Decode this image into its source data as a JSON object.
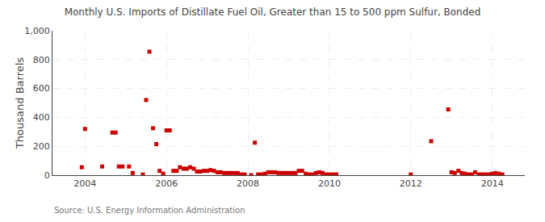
{
  "chart_data": {
    "type": "scatter",
    "title": "Monthly U.S. Imports of Distillate Fuel Oil, Greater than 15 to 500 ppm Sulfur, Bonded",
    "ylabel": "Thousand Barrels",
    "source": "Source: U.S. Energy Information Administration",
    "color": "#cc0000",
    "marker": "square",
    "grid": true,
    "xlim": [
      2003.2,
      2014.8
    ],
    "xticks": [
      2004,
      2006,
      2008,
      2010,
      2012,
      2014
    ],
    "ylim": [
      0,
      1000
    ],
    "yticks": [
      0,
      200,
      400,
      600,
      800,
      {
        "value": 1000,
        "label": "1,000"
      }
    ],
    "x": [
      2003.92,
      2004.0,
      2004.42,
      2004.67,
      2004.75,
      2004.83,
      2004.92,
      2005.08,
      2005.17,
      2005.42,
      2005.5,
      2005.58,
      2005.67,
      2005.75,
      2005.83,
      2005.92,
      2006.0,
      2006.08,
      2006.17,
      2006.25,
      2006.33,
      2006.42,
      2006.5,
      2006.58,
      2006.67,
      2006.75,
      2006.83,
      2006.92,
      2007.0,
      2007.08,
      2007.17,
      2007.25,
      2007.33,
      2007.42,
      2007.5,
      2007.58,
      2007.67,
      2007.75,
      2007.83,
      2007.92,
      2008.08,
      2008.17,
      2008.25,
      2008.33,
      2008.42,
      2008.5,
      2008.58,
      2008.67,
      2008.75,
      2008.83,
      2008.92,
      2009.0,
      2009.08,
      2009.17,
      2009.25,
      2009.33,
      2009.42,
      2009.5,
      2009.58,
      2009.67,
      2009.75,
      2009.83,
      2009.92,
      2010.0,
      2010.08,
      2010.17,
      2012.0,
      2012.5,
      2012.92,
      2013.0,
      2013.08,
      2013.17,
      2013.25,
      2013.33,
      2013.42,
      2013.5,
      2013.58,
      2013.67,
      2013.75,
      2013.83,
      2013.92,
      2014.0,
      2014.08,
      2014.17,
      2014.25
    ],
    "values": [
      55,
      320,
      60,
      295,
      295,
      60,
      60,
      60,
      15,
      5,
      520,
      855,
      325,
      215,
      30,
      10,
      310,
      310,
      30,
      30,
      55,
      45,
      45,
      55,
      45,
      25,
      25,
      30,
      30,
      35,
      30,
      20,
      20,
      15,
      15,
      15,
      15,
      15,
      5,
      5,
      0,
      225,
      5,
      5,
      10,
      20,
      20,
      20,
      15,
      15,
      15,
      15,
      15,
      15,
      30,
      30,
      10,
      5,
      5,
      15,
      20,
      15,
      5,
      5,
      5,
      5,
      5,
      235,
      455,
      20,
      15,
      30,
      15,
      10,
      5,
      5,
      20,
      5,
      5,
      5,
      5,
      10,
      15,
      10,
      5
    ]
  }
}
